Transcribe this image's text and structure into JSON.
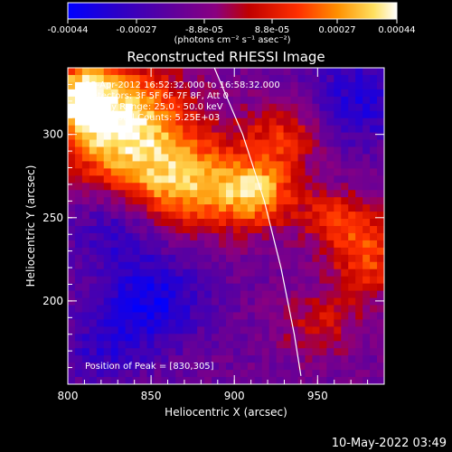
{
  "chart_data": {
    "type": "heatmap",
    "title": "Reconstructed RHESSI Image",
    "xlabel": "Heliocentric X (arcsec)",
    "ylabel": "Heliocentric Y (arcsec)",
    "xlim": [
      800,
      990
    ],
    "ylim": [
      150,
      340
    ],
    "xticks": [
      800,
      850,
      900,
      950
    ],
    "yticks": [
      200,
      250,
      300
    ],
    "colorbar": {
      "ticks": [
        "-0.00044",
        "-0.00027",
        "-8.8e-05",
        "8.8e-05",
        "0.00027",
        "0.00044"
      ],
      "unit_text": "(photons cm⁻² s⁻¹ asec⁻²)",
      "range": [
        -0.00044,
        0.00044
      ],
      "colors": [
        "#0000ff",
        "#4b0082",
        "#7a0090",
        "#b00000",
        "#ff4000",
        "#ffa000",
        "#ffff80",
        "#ffffff"
      ]
    },
    "annotations": [
      "25-Apr-2012 16:52:32.000 to 16:58:32.000",
      "Detectors: 3F 5F 6F 7F 8F, Att 0",
      "Energy Range: 25.0 - 50.0 keV",
      "Clean     Total Counts: 5.25E+03"
    ],
    "peak_label": "Position of Peak = [830,305]",
    "peak": [
      830,
      305
    ],
    "limb_arc": [
      [
        888,
        340
      ],
      [
        905,
        300
      ],
      [
        918,
        260
      ],
      [
        928,
        220
      ],
      [
        936,
        180
      ],
      [
        940,
        155
      ]
    ],
    "bright_sources": [
      {
        "x": 830,
        "y": 308,
        "sx": 28,
        "sy": 24,
        "amp": 1.0
      },
      {
        "x": 870,
        "y": 270,
        "sx": 28,
        "sy": 20,
        "amp": 0.8
      },
      {
        "x": 915,
        "y": 265,
        "sx": 16,
        "sy": 14,
        "amp": 0.7
      },
      {
        "x": 930,
        "y": 300,
        "sx": 18,
        "sy": 14,
        "amp": 0.45
      },
      {
        "x": 980,
        "y": 225,
        "sx": 16,
        "sy": 18,
        "amp": 0.55
      },
      {
        "x": 960,
        "y": 250,
        "sx": 14,
        "sy": 12,
        "amp": 0.45
      },
      {
        "x": 950,
        "y": 185,
        "sx": 16,
        "sy": 14,
        "amp": 0.35
      },
      {
        "x": 808,
        "y": 325,
        "sx": 12,
        "sy": 14,
        "amp": 0.6
      }
    ],
    "dark_sources": [
      {
        "x": 850,
        "y": 200,
        "sx": 22,
        "sy": 20,
        "amp": 0.55
      },
      {
        "x": 830,
        "y": 245,
        "sx": 20,
        "sy": 16,
        "amp": 0.4
      },
      {
        "x": 975,
        "y": 320,
        "sx": 22,
        "sy": 20,
        "amp": 0.45
      },
      {
        "x": 820,
        "y": 170,
        "sx": 18,
        "sy": 14,
        "amp": 0.3
      }
    ]
  },
  "footer_timestamp": "10-May-2022 03:49"
}
